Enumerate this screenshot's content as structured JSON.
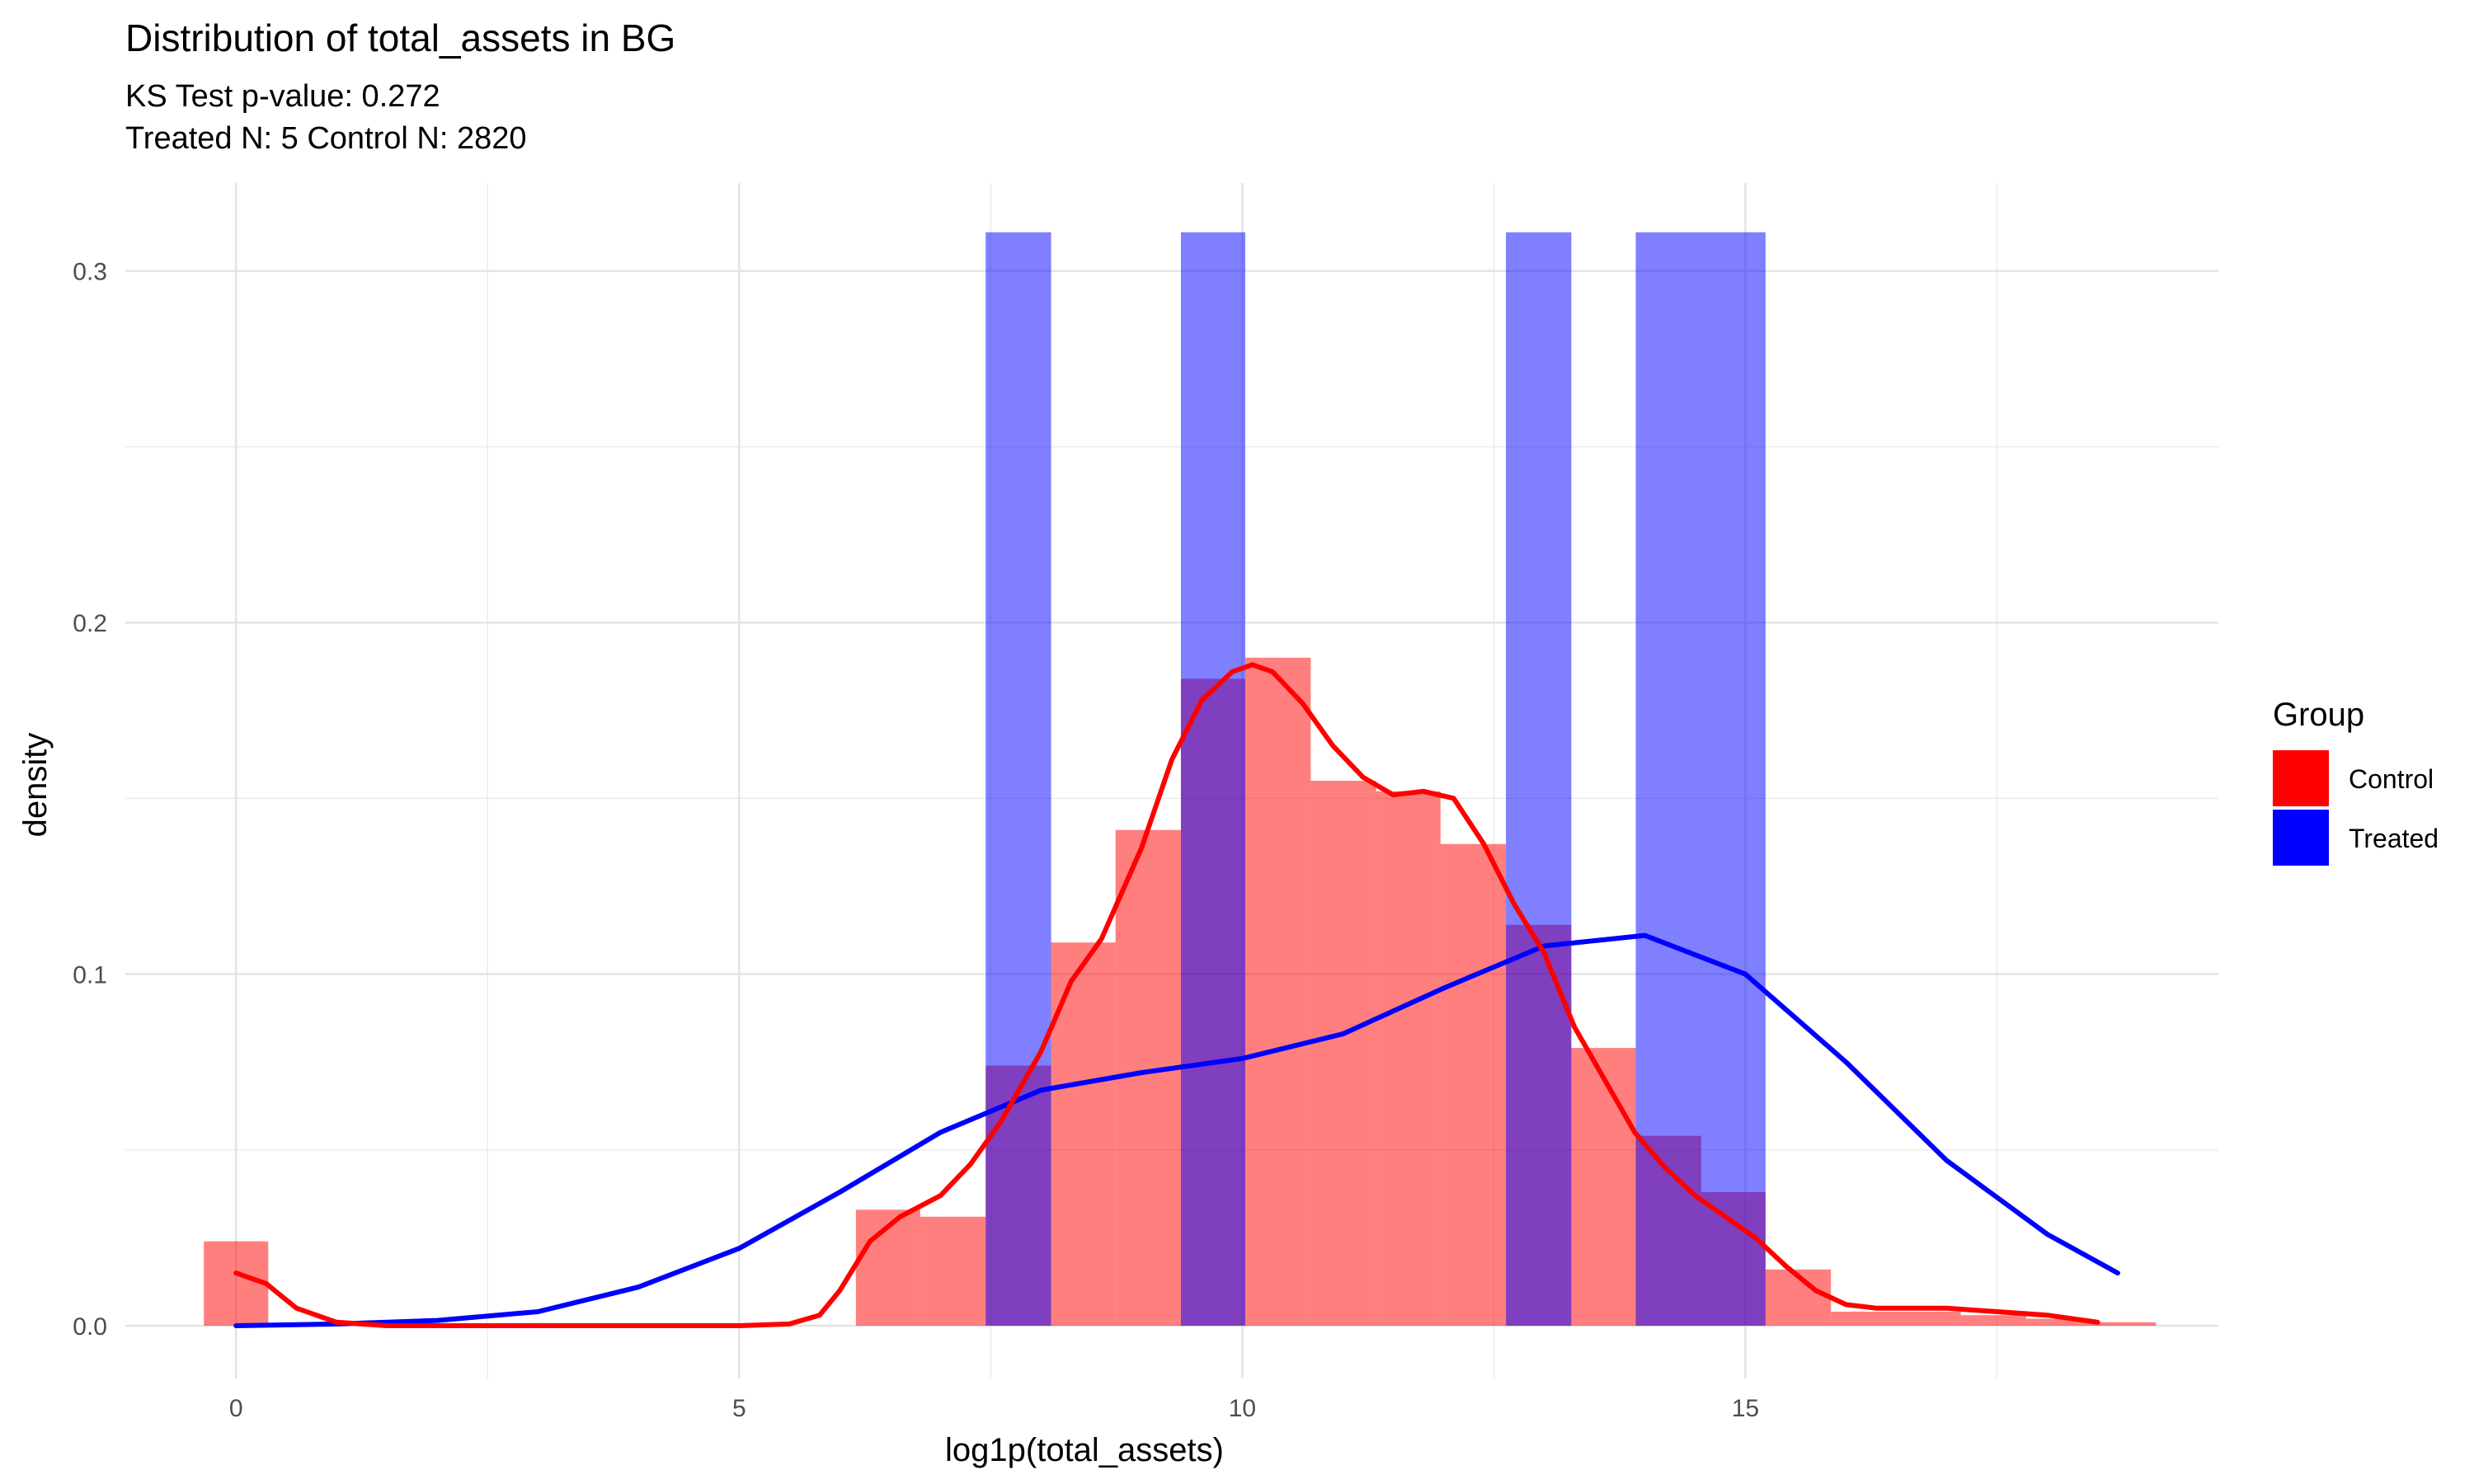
{
  "chart_data": {
    "type": "histogram",
    "title": "Distribution of total_assets in BG",
    "subtitle_lines": [
      "KS Test p-value: 0.272",
      "Treated N: 5 Control N: 2820"
    ],
    "xlabel": "log1p(total_assets)",
    "ylabel": "density",
    "xlim": [
      -1.1,
      19.7
    ],
    "ylim": [
      -0.015,
      0.325
    ],
    "x_ticks": [
      0,
      5,
      10,
      15
    ],
    "y_ticks": [
      0.0,
      0.1,
      0.2,
      0.3
    ],
    "x_tick_labels": [
      "0",
      "5",
      "10",
      "15"
    ],
    "y_tick_labels": [
      "0.0",
      "0.1",
      "0.2",
      "0.3"
    ],
    "grid": true,
    "legend": {
      "title": "Group",
      "placement": "right",
      "entries": [
        {
          "label": "Control",
          "color": "#ff0000"
        },
        {
          "label": "Treated",
          "color": "#0000ff"
        }
      ]
    },
    "series": [
      {
        "name": "Treated",
        "color": "#0000ff",
        "opacity": 0.5,
        "bars": [
          {
            "x0": 7.45,
            "x1": 8.1,
            "y": 0.311
          },
          {
            "x0": 9.39,
            "x1": 10.03,
            "y": 0.311
          },
          {
            "x0": 12.62,
            "x1": 13.27,
            "y": 0.311
          },
          {
            "x0": 13.91,
            "x1": 15.2,
            "y": 0.311
          }
        ],
        "density": {
          "x": [
            0,
            1,
            2,
            3,
            4,
            5,
            6,
            7,
            8,
            9,
            10,
            11,
            12,
            13,
            14,
            15,
            16,
            17,
            18,
            18.7
          ],
          "y": [
            0.0,
            0.0005,
            0.0015,
            0.004,
            0.011,
            0.022,
            0.038,
            0.055,
            0.067,
            0.072,
            0.076,
            0.083,
            0.096,
            0.108,
            0.111,
            0.1,
            0.075,
            0.047,
            0.026,
            0.015
          ]
        }
      },
      {
        "name": "Control",
        "color": "#ff0000",
        "opacity": 0.5,
        "bars": [
          {
            "x0": -0.32,
            "x1": 0.32,
            "y": 0.024
          },
          {
            "x0": 6.16,
            "x1": 6.8,
            "y": 0.033
          },
          {
            "x0": 6.8,
            "x1": 7.45,
            "y": 0.031
          },
          {
            "x0": 7.45,
            "x1": 8.1,
            "y": 0.074
          },
          {
            "x0": 8.1,
            "x1": 8.74,
            "y": 0.109
          },
          {
            "x0": 8.74,
            "x1": 9.39,
            "y": 0.141
          },
          {
            "x0": 9.39,
            "x1": 10.03,
            "y": 0.184
          },
          {
            "x0": 10.03,
            "x1": 10.68,
            "y": 0.19
          },
          {
            "x0": 10.68,
            "x1": 11.33,
            "y": 0.155
          },
          {
            "x0": 11.33,
            "x1": 11.97,
            "y": 0.152
          },
          {
            "x0": 11.97,
            "x1": 12.62,
            "y": 0.137
          },
          {
            "x0": 12.62,
            "x1": 13.27,
            "y": 0.114
          },
          {
            "x0": 13.27,
            "x1": 13.91,
            "y": 0.079
          },
          {
            "x0": 13.91,
            "x1": 14.56,
            "y": 0.054
          },
          {
            "x0": 14.56,
            "x1": 15.2,
            "y": 0.038
          },
          {
            "x0": 15.2,
            "x1": 15.85,
            "y": 0.016
          },
          {
            "x0": 15.85,
            "x1": 16.5,
            "y": 0.004
          },
          {
            "x0": 16.5,
            "x1": 17.14,
            "y": 0.004
          },
          {
            "x0": 17.14,
            "x1": 17.79,
            "y": 0.003
          },
          {
            "x0": 17.79,
            "x1": 18.44,
            "y": 0.002
          },
          {
            "x0": 18.44,
            "x1": 19.08,
            "y": 0.001
          }
        ],
        "density": {
          "x": [
            0,
            0.3,
            0.6,
            1.0,
            1.5,
            2,
            3,
            4,
            5,
            5.5,
            5.8,
            6.0,
            6.3,
            6.6,
            7.0,
            7.3,
            7.6,
            8.0,
            8.3,
            8.6,
            9.0,
            9.3,
            9.6,
            9.9,
            10.1,
            10.3,
            10.6,
            10.9,
            11.2,
            11.5,
            11.8,
            12.1,
            12.4,
            12.7,
            13.0,
            13.3,
            13.6,
            13.9,
            14.2,
            14.5,
            14.8,
            15.1,
            15.4,
            15.7,
            16.0,
            16.3,
            16.7,
            17.0,
            17.5,
            18.0,
            18.5
          ],
          "y": [
            0.015,
            0.012,
            0.005,
            0.001,
            0.0,
            0.0,
            0.0,
            0.0,
            0.0,
            0.0005,
            0.003,
            0.01,
            0.024,
            0.031,
            0.037,
            0.046,
            0.058,
            0.078,
            0.098,
            0.11,
            0.136,
            0.161,
            0.178,
            0.186,
            0.188,
            0.186,
            0.177,
            0.165,
            0.156,
            0.151,
            0.152,
            0.15,
            0.137,
            0.12,
            0.106,
            0.085,
            0.07,
            0.055,
            0.045,
            0.037,
            0.031,
            0.025,
            0.017,
            0.01,
            0.006,
            0.005,
            0.005,
            0.005,
            0.004,
            0.003,
            0.001
          ]
        }
      }
    ]
  }
}
